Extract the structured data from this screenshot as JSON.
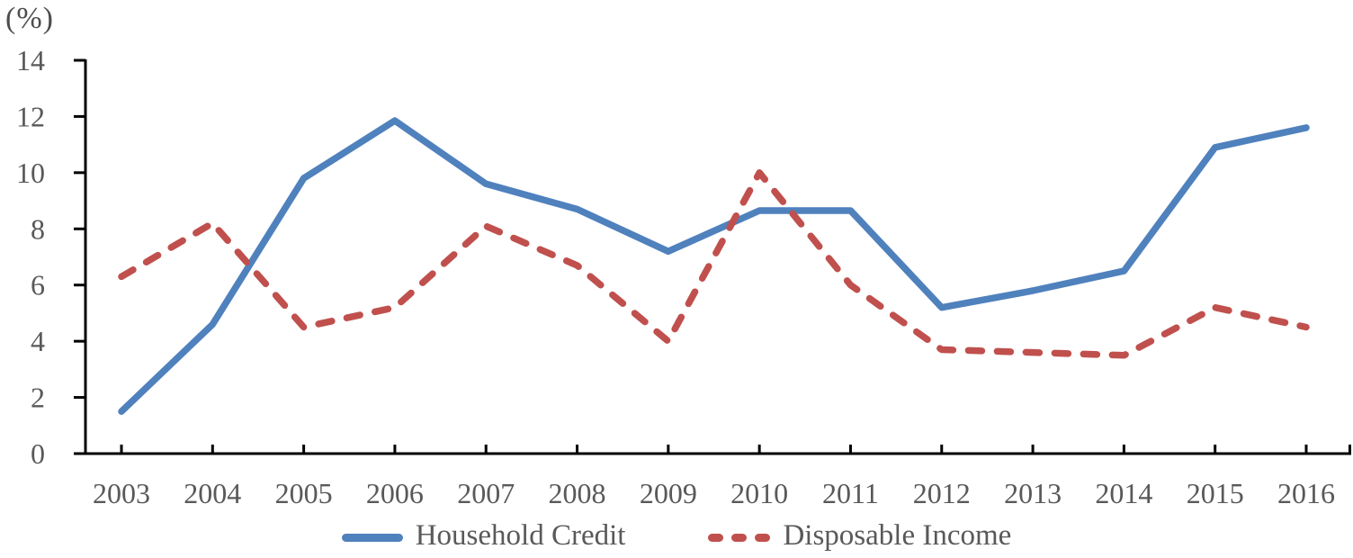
{
  "chart_data": {
    "type": "line",
    "title": "",
    "unit_label": "(%)",
    "xlabel": "",
    "ylabel": "(%)",
    "categories": [
      "2003",
      "2004",
      "2005",
      "2006",
      "2007",
      "2008",
      "2009",
      "2010",
      "2011",
      "2012",
      "2013",
      "2014",
      "2015",
      "2016"
    ],
    "series": [
      {
        "name": "Household Credit",
        "style": "solid",
        "color": "#4F81BD",
        "values": [
          1.5,
          4.6,
          9.8,
          11.85,
          9.6,
          8.7,
          7.2,
          8.65,
          8.65,
          5.2,
          5.8,
          6.5,
          10.9,
          11.6
        ]
      },
      {
        "name": "Disposable Income",
        "style": "dashed",
        "color": "#C0504D",
        "values": [
          6.3,
          8.2,
          4.5,
          5.2,
          8.1,
          6.7,
          4.0,
          10.0,
          6.0,
          3.7,
          3.6,
          3.5,
          5.2,
          4.5
        ]
      }
    ],
    "ylim": [
      0,
      14
    ],
    "yticks": [
      0,
      2,
      4,
      6,
      8,
      10,
      12,
      14
    ],
    "grid": false,
    "legend_position": "bottom"
  },
  "colors": {
    "axis": "#000000",
    "tick_label": "#595959",
    "legend_text": "#595959",
    "background": "#ffffff"
  }
}
